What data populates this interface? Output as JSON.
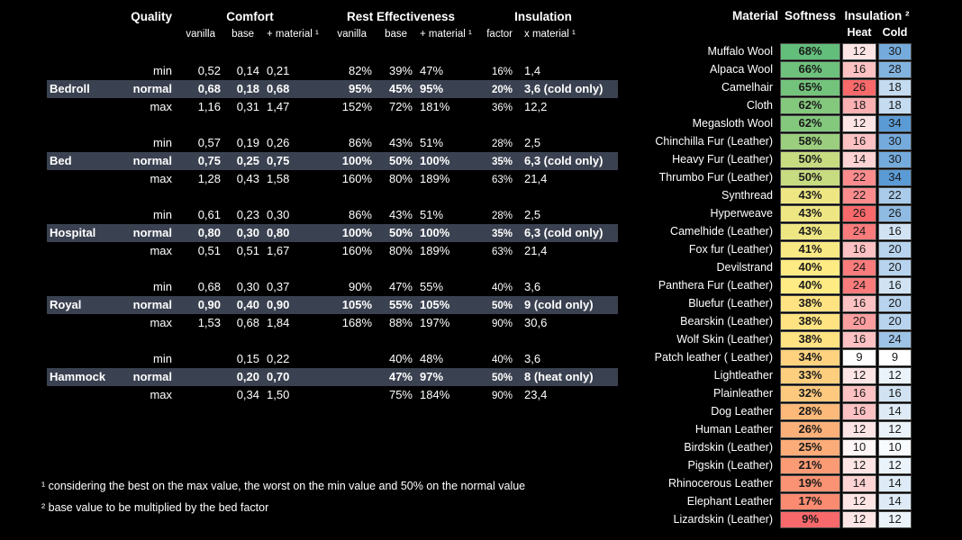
{
  "colors": {
    "background": "#000000",
    "highlight_row": "#3A4150",
    "text": "#FFFFFF",
    "cell_text": "#1A1A1A"
  },
  "bed_table": {
    "header": {
      "quality": "Quality",
      "comfort": "Comfort",
      "rest_effectiveness": "Rest Effectiveness",
      "insulation": "Insulation",
      "comfort_vanilla": "vanilla",
      "comfort_base": "base",
      "comfort_material": "+ material ¹",
      "rest_vanilla": "vanilla",
      "rest_base": "base",
      "rest_material": "+ material ¹",
      "factor": "factor",
      "x_material": "x material ¹"
    },
    "groups": [
      {
        "name": "Bedroll",
        "rows": [
          {
            "quality": "min",
            "comfort_vanilla": "0,52",
            "comfort_base": "0,14",
            "comfort_material": "0,21",
            "rest_vanilla": "82%",
            "rest_base": "39%",
            "rest_material": "47%",
            "factor": "16%",
            "insulation": "1,4",
            "highlight": false
          },
          {
            "quality": "normal",
            "comfort_vanilla": "0,68",
            "comfort_base": "0,18",
            "comfort_material": "0,68",
            "rest_vanilla": "95%",
            "rest_base": "45%",
            "rest_material": "95%",
            "factor": "20%",
            "insulation": "3,6 (cold only)",
            "highlight": true
          },
          {
            "quality": "max",
            "comfort_vanilla": "1,16",
            "comfort_base": "0,31",
            "comfort_material": "1,47",
            "rest_vanilla": "152%",
            "rest_base": "72%",
            "rest_material": "181%",
            "factor": "36%",
            "insulation": "12,2",
            "highlight": false
          }
        ]
      },
      {
        "name": "Bed",
        "rows": [
          {
            "quality": "min",
            "comfort_vanilla": "0,57",
            "comfort_base": "0,19",
            "comfort_material": "0,26",
            "rest_vanilla": "86%",
            "rest_base": "43%",
            "rest_material": "51%",
            "factor": "28%",
            "insulation": "2,5",
            "highlight": false
          },
          {
            "quality": "normal",
            "comfort_vanilla": "0,75",
            "comfort_base": "0,25",
            "comfort_material": "0,75",
            "rest_vanilla": "100%",
            "rest_base": "50%",
            "rest_material": "100%",
            "factor": "35%",
            "insulation": "6,3 (cold only)",
            "highlight": true
          },
          {
            "quality": "max",
            "comfort_vanilla": "1,28",
            "comfort_base": "0,43",
            "comfort_material": "1,58",
            "rest_vanilla": "160%",
            "rest_base": "80%",
            "rest_material": "189%",
            "factor": "63%",
            "insulation": "21,4",
            "highlight": false
          }
        ]
      },
      {
        "name": "Hospital",
        "rows": [
          {
            "quality": "min",
            "comfort_vanilla": "0,61",
            "comfort_base": "0,23",
            "comfort_material": "0,30",
            "rest_vanilla": "86%",
            "rest_base": "43%",
            "rest_material": "51%",
            "factor": "28%",
            "insulation": "2,5",
            "highlight": false
          },
          {
            "quality": "normal",
            "comfort_vanilla": "0,80",
            "comfort_base": "0,30",
            "comfort_material": "0,80",
            "rest_vanilla": "100%",
            "rest_base": "50%",
            "rest_material": "100%",
            "factor": "35%",
            "insulation": "6,3 (cold only)",
            "highlight": true
          },
          {
            "quality": "max",
            "comfort_vanilla": "0,51",
            "comfort_base": "0,51",
            "comfort_material": "1,67",
            "rest_vanilla": "160%",
            "rest_base": "80%",
            "rest_material": "189%",
            "factor": "63%",
            "insulation": "21,4",
            "highlight": false
          }
        ]
      },
      {
        "name": "Royal",
        "rows": [
          {
            "quality": "min",
            "comfort_vanilla": "0,68",
            "comfort_base": "0,30",
            "comfort_material": "0,37",
            "rest_vanilla": "90%",
            "rest_base": "47%",
            "rest_material": "55%",
            "factor": "40%",
            "insulation": "3,6",
            "highlight": false
          },
          {
            "quality": "normal",
            "comfort_vanilla": "0,90",
            "comfort_base": "0,40",
            "comfort_material": "0,90",
            "rest_vanilla": "105%",
            "rest_base": "55%",
            "rest_material": "105%",
            "factor": "50%",
            "insulation": "9 (cold only)",
            "highlight": true
          },
          {
            "quality": "max",
            "comfort_vanilla": "1,53",
            "comfort_base": "0,68",
            "comfort_material": "1,84",
            "rest_vanilla": "168%",
            "rest_base": "88%",
            "rest_material": "197%",
            "factor": "90%",
            "insulation": "30,6",
            "highlight": false
          }
        ]
      },
      {
        "name": "Hammock",
        "rows": [
          {
            "quality": "min",
            "comfort_vanilla": "",
            "comfort_base": "0,15",
            "comfort_material": "0,22",
            "rest_vanilla": "",
            "rest_base": "40%",
            "rest_material": "48%",
            "factor": "40%",
            "insulation": "3,6",
            "highlight": false
          },
          {
            "quality": "normal",
            "comfort_vanilla": "",
            "comfort_base": "0,20",
            "comfort_material": "0,70",
            "rest_vanilla": "",
            "rest_base": "47%",
            "rest_material": "97%",
            "factor": "50%",
            "insulation": "8 (heat only)",
            "highlight": true
          },
          {
            "quality": "max",
            "comfort_vanilla": "",
            "comfort_base": "0,34",
            "comfort_material": "1,50",
            "rest_vanilla": "",
            "rest_base": "75%",
            "rest_material": "184%",
            "factor": "90%",
            "insulation": "23,4",
            "highlight": false
          }
        ]
      }
    ],
    "footnotes": [
      "¹ considering the best on the max value, the worst on the min value and 50% on the normal value",
      "² base value to be multiplied by the bed factor"
    ]
  },
  "material_table": {
    "header": {
      "material": "Material",
      "softness": "Softness",
      "insulation": "Insulation ²",
      "heat": "Heat",
      "cold": "Cold"
    },
    "color_scales": {
      "softness": {
        "stops": [
          {
            "value": 9,
            "color": "#F8696B"
          },
          {
            "value": 40,
            "color": "#FFEB84"
          },
          {
            "value": 68,
            "color": "#63BE7B"
          }
        ]
      },
      "heat": {
        "stops": [
          {
            "value": 9,
            "color": "#FFFFFF"
          },
          {
            "value": 26,
            "color": "#F8696B"
          }
        ]
      },
      "cold": {
        "stops": [
          {
            "value": 9,
            "color": "#FFFFFF"
          },
          {
            "value": 34,
            "color": "#5B9BD5"
          }
        ]
      }
    },
    "rows": [
      {
        "material": "Muffalo Wool",
        "softness": "68%",
        "heat": 12,
        "cold": 30
      },
      {
        "material": "Alpaca Wool",
        "softness": "66%",
        "heat": 16,
        "cold": 28
      },
      {
        "material": "Camelhair",
        "softness": "65%",
        "heat": 26,
        "cold": 18
      },
      {
        "material": "Cloth",
        "softness": "62%",
        "heat": 18,
        "cold": 18
      },
      {
        "material": "Megasloth Wool",
        "softness": "62%",
        "heat": 12,
        "cold": 34
      },
      {
        "material": "Chinchilla Fur (Leather)",
        "softness": "58%",
        "heat": 16,
        "cold": 30
      },
      {
        "material": "Heavy Fur (Leather)",
        "softness": "50%",
        "heat": 14,
        "cold": 30
      },
      {
        "material": "Thrumbo Fur (Leather)",
        "softness": "50%",
        "heat": 22,
        "cold": 34
      },
      {
        "material": "Synthread",
        "softness": "43%",
        "heat": 22,
        "cold": 22
      },
      {
        "material": "Hyperweave",
        "softness": "43%",
        "heat": 26,
        "cold": 26
      },
      {
        "material": "Camelhide (Leather)",
        "softness": "43%",
        "heat": 24,
        "cold": 16
      },
      {
        "material": "Fox fur (Leather)",
        "softness": "41%",
        "heat": 16,
        "cold": 20
      },
      {
        "material": "Devilstrand",
        "softness": "40%",
        "heat": 24,
        "cold": 20
      },
      {
        "material": "Panthera Fur (Leather)",
        "softness": "40%",
        "heat": 24,
        "cold": 16
      },
      {
        "material": "Bluefur (Leather)",
        "softness": "38%",
        "heat": 16,
        "cold": 20
      },
      {
        "material": "Bearskin (Leather)",
        "softness": "38%",
        "heat": 20,
        "cold": 20
      },
      {
        "material": "Wolf Skin (Leather)",
        "softness": "38%",
        "heat": 16,
        "cold": 24
      },
      {
        "material": "Patch leather ( Leather)",
        "softness": "34%",
        "heat": 9,
        "cold": 9
      },
      {
        "material": "Lightleather",
        "softness": "33%",
        "heat": 12,
        "cold": 12
      },
      {
        "material": "Plainleather",
        "softness": "32%",
        "heat": 16,
        "cold": 16
      },
      {
        "material": "Dog Leather",
        "softness": "28%",
        "heat": 16,
        "cold": 14
      },
      {
        "material": "Human Leather",
        "softness": "26%",
        "heat": 12,
        "cold": 12
      },
      {
        "material": "Birdskin (Leather)",
        "softness": "25%",
        "heat": 10,
        "cold": 10
      },
      {
        "material": "Pigskin (Leather)",
        "softness": "21%",
        "heat": 12,
        "cold": 12
      },
      {
        "material": "Rhinocerous Leather",
        "softness": "19%",
        "heat": 14,
        "cold": 14
      },
      {
        "material": "Elephant Leather",
        "softness": "17%",
        "heat": 12,
        "cold": 14
      },
      {
        "material": "Lizardskin (Leather)",
        "softness": "9%",
        "heat": 12,
        "cold": 12
      }
    ]
  }
}
